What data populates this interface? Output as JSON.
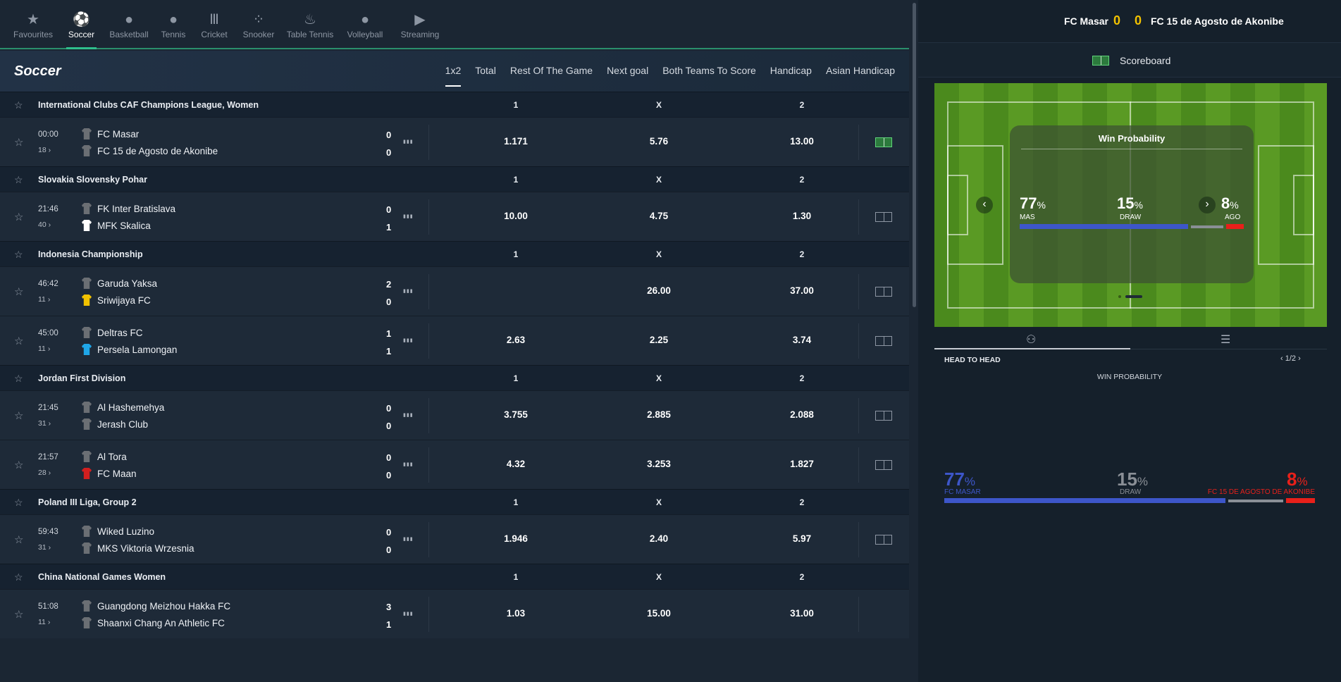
{
  "sports": [
    {
      "label": "Favourites",
      "icon": "star-icon",
      "glyph": "★"
    },
    {
      "label": "Soccer",
      "icon": "soccer-ball-icon",
      "glyph": "⚽"
    },
    {
      "label": "Basketball",
      "icon": "basketball-icon",
      "glyph": "●"
    },
    {
      "label": "Tennis",
      "icon": "tennis-ball-icon",
      "glyph": "●"
    },
    {
      "label": "Cricket",
      "icon": "cricket-stumps-icon",
      "glyph": "Ⅲ"
    },
    {
      "label": "Snooker",
      "icon": "snooker-balls-icon",
      "glyph": "⁘"
    },
    {
      "label": "Table Tennis",
      "icon": "table-tennis-icon",
      "glyph": "♨"
    },
    {
      "label": "Volleyball",
      "icon": "volleyball-icon",
      "glyph": "●"
    },
    {
      "label": "Streaming",
      "icon": "play-icon",
      "glyph": "▶"
    }
  ],
  "header": {
    "title": "Soccer"
  },
  "markets": [
    "1x2",
    "Total",
    "Rest Of The Game",
    "Next goal",
    "Both Teams To Score",
    "Handicap",
    "Asian Handicap"
  ],
  "columns": {
    "c1": "1",
    "cx": "X",
    "c2": "2"
  },
  "leagues": [
    {
      "name": "International Clubs CAF Champions League, Women",
      "matches": [
        {
          "time": "00:00",
          "minute": "18",
          "home": "FC Masar",
          "away": "FC 15 de Agosto de Akonibe",
          "hs": "0",
          "as": "0",
          "o1": "1.171",
          "ox": "5.76",
          "o2": "13.00",
          "home_color": "#6b6f74",
          "away_color": "#6b6f74",
          "live_field": true
        }
      ]
    },
    {
      "name": "Slovakia Slovensky Pohar",
      "matches": [
        {
          "time": "21:46",
          "minute": "40",
          "home": "FK Inter Bratislava",
          "away": "MFK Skalica",
          "hs": "0",
          "as": "1",
          "o1": "10.00",
          "ox": "4.75",
          "o2": "1.30",
          "home_color": "#6b6f74",
          "away_color": "#ffffff",
          "live_field": false
        }
      ]
    },
    {
      "name": "Indonesia Championship",
      "matches": [
        {
          "time": "46:42",
          "minute": "11",
          "home": "Garuda Yaksa",
          "away": "Sriwijaya FC",
          "hs": "2",
          "as": "0",
          "o1": "",
          "ox": "26.00",
          "o2": "37.00",
          "home_color": "#6b6f74",
          "away_color": "#f2c200",
          "live_field": false
        },
        {
          "time": "45:00",
          "minute": "11",
          "home": "Deltras FC",
          "away": "Persela Lamongan",
          "hs": "1",
          "as": "1",
          "o1": "2.63",
          "ox": "2.25",
          "o2": "3.74",
          "home_color": "#6b6f74",
          "away_color": "#1fa6e8",
          "live_field": false
        }
      ]
    },
    {
      "name": "Jordan First Division",
      "matches": [
        {
          "time": "21:45",
          "minute": "31",
          "home": "Al Hashemehya",
          "away": "Jerash Club",
          "hs": "0",
          "as": "0",
          "o1": "3.755",
          "ox": "2.885",
          "o2": "2.088",
          "home_color": "#6b6f74",
          "away_color": "#6b6f74",
          "live_field": false
        },
        {
          "time": "21:57",
          "minute": "28",
          "home": "Al Tora",
          "away": "FC Maan",
          "hs": "0",
          "as": "0",
          "o1": "4.32",
          "ox": "3.253",
          "o2": "1.827",
          "home_color": "#6b6f74",
          "away_color": "#d21f1f",
          "live_field": false
        }
      ]
    },
    {
      "name": "Poland III Liga, Group 2",
      "matches": [
        {
          "time": "59:43",
          "minute": "31",
          "home": "Wiked Luzino",
          "away": "MKS Viktoria Wrzesnia",
          "hs": "0",
          "as": "0",
          "o1": "1.946",
          "ox": "2.40",
          "o2": "5.97",
          "home_color": "#6b6f74",
          "away_color": "#6b6f74",
          "live_field": false
        }
      ]
    },
    {
      "name": "China National Games Women",
      "matches": [
        {
          "time": "51:08",
          "minute": "11",
          "home": "Guangdong Meizhou Hakka FC",
          "away": "Shaanxi Chang An Athletic FC",
          "hs": "3",
          "as": "1",
          "o1": "1.03",
          "ox": "15.00",
          "o2": "31.00",
          "home_color": "#6b6f74",
          "away_color": "#6b6f74",
          "live_field": null
        }
      ]
    }
  ],
  "match_header": {
    "home": "FC Masar",
    "home_score": "0",
    "away_score": "0",
    "away": "FC 15 de Agosto de Akonibe",
    "score_color": "#f2c200"
  },
  "scoreboard": {
    "label": "Scoreboard"
  },
  "win_probability": {
    "title": "Win Probability",
    "home_pct": 77,
    "draw_pct": 15,
    "away_pct": 8,
    "home_abbr": "MAS",
    "draw_label": "DRAW",
    "away_abbr": "AGO",
    "home_full": "FC MASAR",
    "away_full": "FC 15 DE AGOSTO DE AKONIBE",
    "pct_sign": "%",
    "home_color": "#3d56c9",
    "draw_color": "#8a8f96",
    "away_color": "#e8201a"
  },
  "head_to_head": {
    "label": "HEAD TO HEAD",
    "pager": "1/2",
    "subtitle": "WIN PROBABILITY"
  }
}
